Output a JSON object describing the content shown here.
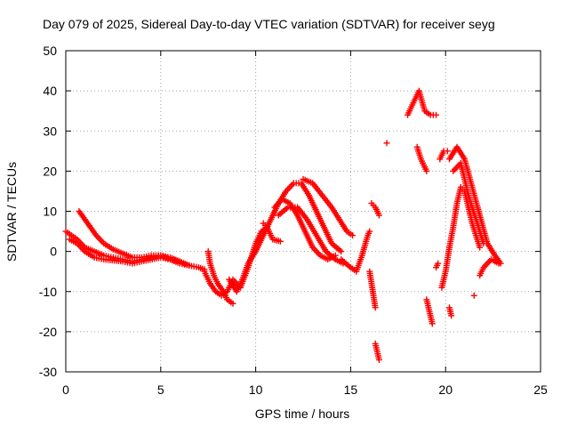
{
  "colors": {
    "marker": "#ff0000",
    "axis": "#000000",
    "grid": "#a0a0a0"
  },
  "chart_data": {
    "type": "scatter",
    "title": "Day 079 of 2025, Sidereal Day-to-day VTEC variation (SDTVAR) for receiver seyg",
    "xlabel": "GPS time / hours",
    "ylabel": "SDTVAR / TECUs",
    "xlim": [
      0,
      25
    ],
    "ylim": [
      -30,
      50
    ],
    "xticks": [
      0,
      5,
      10,
      15,
      20,
      25
    ],
    "yticks": [
      -30,
      -20,
      -10,
      0,
      10,
      20,
      30,
      40,
      50
    ],
    "grid": true,
    "marker": "plus",
    "series": [
      {
        "name": "arc-early-1",
        "points": [
          [
            0,
            5
          ],
          [
            0.3,
            4
          ],
          [
            0.6,
            3
          ],
          [
            1,
            1
          ],
          [
            1.5,
            0
          ],
          [
            2,
            -1
          ],
          [
            2.5,
            -1.5
          ],
          [
            3,
            -2
          ],
          [
            3.5,
            -2.5
          ],
          [
            4,
            -2
          ],
          [
            4.5,
            -1.5
          ],
          [
            5,
            -1
          ],
          [
            5.5,
            -1.5
          ],
          [
            6,
            -2.5
          ],
          [
            6.5,
            -3.5
          ],
          [
            7,
            -4
          ],
          [
            7.3,
            -4.5
          ]
        ]
      },
      {
        "name": "arc-early-2",
        "points": [
          [
            0.7,
            10
          ],
          [
            1,
            8
          ],
          [
            1.3,
            6
          ],
          [
            1.6,
            4
          ],
          [
            2,
            2
          ],
          [
            2.5,
            0.5
          ],
          [
            3,
            -0.5
          ],
          [
            3.5,
            -1.5
          ],
          [
            4,
            -1.5
          ],
          [
            4.5,
            -1
          ],
          [
            5,
            -1
          ],
          [
            5.5,
            -2
          ],
          [
            6,
            -3
          ],
          [
            6.5,
            -3.5
          ]
        ]
      },
      {
        "name": "arc-early-3",
        "points": [
          [
            0.2,
            3
          ],
          [
            0.6,
            2
          ],
          [
            1,
            0
          ],
          [
            1.5,
            -1.5
          ],
          [
            2,
            -2
          ],
          [
            3,
            -2.5
          ],
          [
            3.5,
            -3
          ],
          [
            4,
            -2.5
          ],
          [
            5,
            -1.5
          ],
          [
            5.5,
            -2
          ],
          [
            6,
            -2.5
          ]
        ]
      },
      {
        "name": "arc-dip",
        "points": [
          [
            7.3,
            -5
          ],
          [
            7.6,
            -8
          ],
          [
            7.9,
            -10
          ],
          [
            8.2,
            -11
          ],
          [
            8.5,
            -10
          ],
          [
            8.8,
            -7
          ],
          [
            9.2,
            -9
          ],
          [
            9.6,
            -4
          ],
          [
            10,
            2
          ],
          [
            10.3,
            5
          ],
          [
            10.6,
            6
          ]
        ]
      },
      {
        "name": "arc-dip-2",
        "points": [
          [
            7.5,
            0
          ],
          [
            7.6,
            -3
          ],
          [
            7.8,
            -6
          ],
          [
            8,
            -8
          ],
          [
            8.3,
            -10
          ],
          [
            8.5,
            -12
          ],
          [
            8.8,
            -13
          ]
        ]
      },
      {
        "name": "arc-mid-1",
        "points": [
          [
            8.6,
            -7
          ],
          [
            9,
            -10
          ],
          [
            9.3,
            -7
          ],
          [
            9.6,
            -3
          ],
          [
            10,
            0
          ],
          [
            10.4,
            4
          ],
          [
            10.8,
            8
          ],
          [
            11.2,
            12
          ],
          [
            11.6,
            15
          ],
          [
            12,
            17
          ],
          [
            12.4,
            17
          ],
          [
            12.8,
            14
          ],
          [
            13.2,
            10
          ],
          [
            13.6,
            6
          ],
          [
            14,
            2
          ],
          [
            14.5,
            0
          ]
        ]
      },
      {
        "name": "arc-mid-2",
        "points": [
          [
            11,
            11
          ],
          [
            11.4,
            13
          ],
          [
            11.8,
            12
          ],
          [
            12.2,
            9
          ],
          [
            12.6,
            5
          ],
          [
            13,
            1
          ],
          [
            13.4,
            -1
          ],
          [
            13.8,
            -2
          ],
          [
            14.2,
            -1
          ]
        ]
      },
      {
        "name": "arc-mid-3",
        "points": [
          [
            11.2,
            9
          ],
          [
            11.7,
            11
          ],
          [
            12.2,
            11
          ],
          [
            12.7,
            8
          ],
          [
            13.2,
            4
          ],
          [
            13.7,
            0
          ],
          [
            14.2,
            -2
          ],
          [
            14.6,
            -3
          ]
        ]
      },
      {
        "name": "arc-mid-4",
        "points": [
          [
            12.5,
            18
          ],
          [
            13,
            17
          ],
          [
            13.5,
            14
          ],
          [
            14,
            11
          ],
          [
            14.4,
            8
          ],
          [
            14.8,
            5
          ],
          [
            15.1,
            4
          ]
        ]
      },
      {
        "name": "arc-mid-5",
        "points": [
          [
            10.4,
            7
          ],
          [
            10.6,
            6
          ],
          [
            10.9,
            3
          ],
          [
            11.3,
            2.5
          ]
        ]
      },
      {
        "name": "arc-pm-1",
        "points": [
          [
            14.5,
            -2
          ],
          [
            15,
            -4
          ],
          [
            15.3,
            -5
          ],
          [
            15.6,
            -1
          ],
          [
            15.9,
            4
          ],
          [
            16,
            5
          ]
        ]
      },
      {
        "name": "arc-pm-2",
        "points": [
          [
            16,
            -5
          ],
          [
            16.1,
            -8
          ],
          [
            16.2,
            -11
          ],
          [
            16.3,
            -14
          ]
        ]
      },
      {
        "name": "arc-pm-3",
        "points": [
          [
            16.1,
            12
          ],
          [
            16.3,
            11
          ],
          [
            16.5,
            9
          ]
        ]
      },
      {
        "name": "arc-pm-4",
        "points": [
          [
            16.3,
            -23
          ],
          [
            16.4,
            -25
          ],
          [
            16.5,
            -27
          ]
        ]
      },
      {
        "name": "arc-pm-5",
        "points": [
          [
            16.9,
            27
          ]
        ]
      },
      {
        "name": "arc-peak-1",
        "points": [
          [
            18,
            34
          ],
          [
            18.3,
            37
          ],
          [
            18.6,
            40
          ],
          [
            18.9,
            35
          ],
          [
            19.2,
            34
          ],
          [
            19.5,
            34
          ]
        ]
      },
      {
        "name": "arc-peak-2",
        "points": [
          [
            18.5,
            26
          ],
          [
            18.7,
            23
          ],
          [
            19,
            20
          ]
        ]
      },
      {
        "name": "arc-peak-3",
        "points": [
          [
            19,
            -12
          ],
          [
            19.1,
            -14
          ],
          [
            19.2,
            -16
          ],
          [
            19.3,
            -18
          ]
        ]
      },
      {
        "name": "arc-peak-4",
        "points": [
          [
            19.5,
            -4
          ],
          [
            19.6,
            -3
          ]
        ]
      },
      {
        "name": "arc-late-1",
        "points": [
          [
            19.7,
            23
          ],
          [
            19.9,
            25
          ],
          [
            20.1,
            25
          ]
        ]
      },
      {
        "name": "arc-late-2",
        "points": [
          [
            19.8,
            -9
          ],
          [
            20,
            -5
          ],
          [
            20.2,
            1
          ],
          [
            20.4,
            6
          ],
          [
            20.6,
            12
          ],
          [
            20.8,
            16
          ],
          [
            21,
            15
          ],
          [
            21.2,
            11
          ],
          [
            21.4,
            7
          ],
          [
            21.6,
            4
          ],
          [
            21.8,
            1
          ]
        ]
      },
      {
        "name": "arc-late-3",
        "points": [
          [
            20.2,
            -14
          ],
          [
            20.3,
            -16
          ]
        ]
      },
      {
        "name": "arc-late-4",
        "points": [
          [
            20.2,
            23
          ],
          [
            20.6,
            26
          ],
          [
            21,
            23
          ],
          [
            21.4,
            16
          ],
          [
            21.8,
            9
          ],
          [
            22.2,
            2
          ],
          [
            22.6,
            -1
          ],
          [
            22.9,
            -3
          ]
        ]
      },
      {
        "name": "arc-late-5",
        "points": [
          [
            20.4,
            20
          ],
          [
            20.8,
            22
          ],
          [
            21.2,
            14
          ],
          [
            21.6,
            8
          ],
          [
            22,
            2
          ]
        ]
      },
      {
        "name": "arc-late-6",
        "points": [
          [
            21.5,
            -11
          ]
        ]
      },
      {
        "name": "arc-late-7",
        "points": [
          [
            21.8,
            -6
          ],
          [
            22,
            -4
          ],
          [
            22.4,
            -2
          ],
          [
            22.8,
            -3
          ]
        ]
      }
    ]
  }
}
